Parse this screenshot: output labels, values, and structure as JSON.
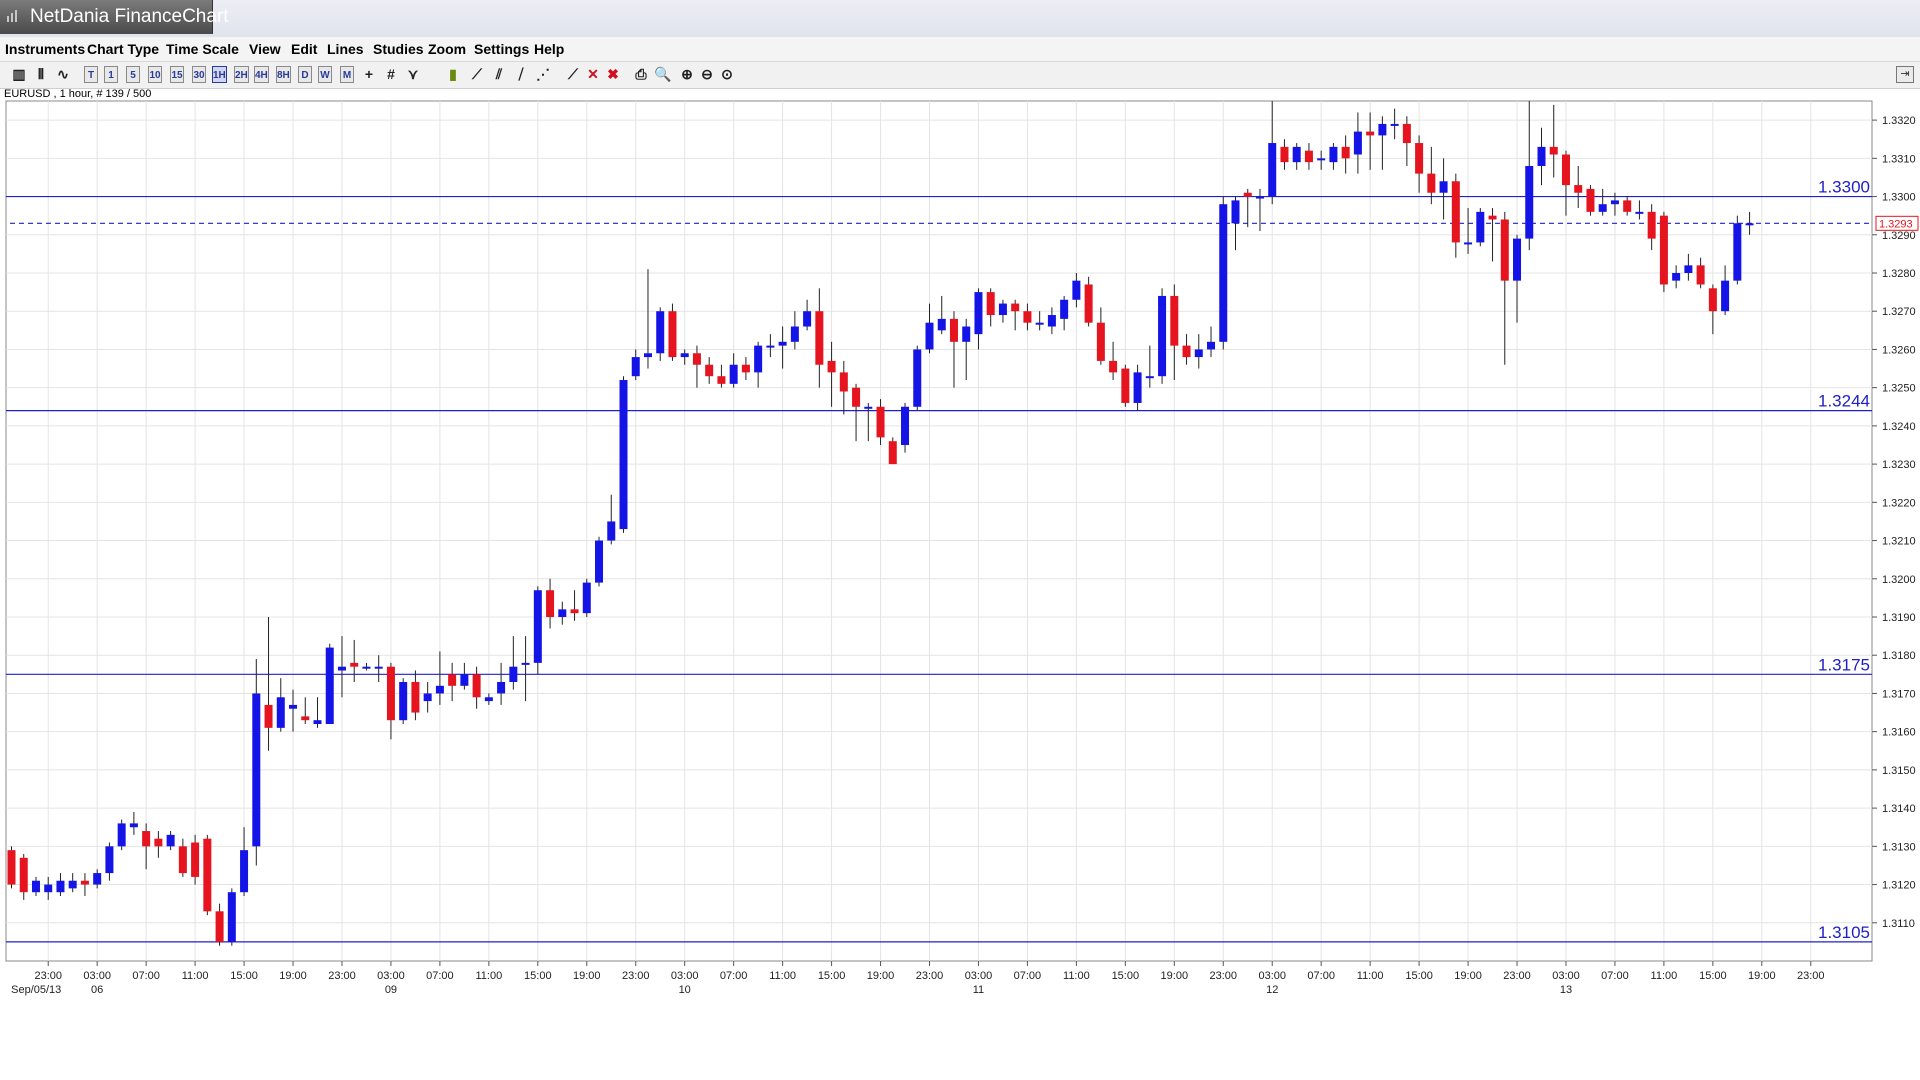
{
  "window": {
    "title": "NetDania FinanceChart"
  },
  "menu": [
    "Instruments",
    "Chart Type",
    "Time Scale",
    "View",
    "Edit",
    "Lines",
    "Studies",
    "Zoom",
    "Settings",
    "Help"
  ],
  "toolbar": {
    "buttons": [
      {
        "name": "chart-type-candle-icon",
        "label": "▥"
      },
      {
        "name": "chart-type-bar-icon",
        "label": "⫴"
      },
      {
        "name": "chart-type-line-icon",
        "label": "∿"
      },
      {
        "name": "timescale-tick-button",
        "label": "T"
      },
      {
        "name": "timescale-1m-button",
        "label": "1"
      },
      {
        "name": "timescale-5m-button",
        "label": "5"
      },
      {
        "name": "timescale-10m-button",
        "label": "10"
      },
      {
        "name": "timescale-15m-button",
        "label": "15"
      },
      {
        "name": "timescale-30m-button",
        "label": "30"
      },
      {
        "name": "timescale-1h-button",
        "label": "1H"
      },
      {
        "name": "timescale-2h-button",
        "label": "2H"
      },
      {
        "name": "timescale-4h-button",
        "label": "4H"
      },
      {
        "name": "timescale-8h-button",
        "label": "8H"
      },
      {
        "name": "timescale-day-button",
        "label": "D"
      },
      {
        "name": "timescale-week-button",
        "label": "W"
      },
      {
        "name": "timescale-month-button",
        "label": "M"
      },
      {
        "name": "crosshair-icon",
        "label": "+"
      },
      {
        "name": "grid-icon",
        "label": "#"
      },
      {
        "name": "indicator-icon",
        "label": "⋎"
      },
      {
        "name": "volume-icon",
        "label": "▮"
      },
      {
        "name": "trend-line-icon",
        "label": "⟋"
      },
      {
        "name": "channel-icon",
        "label": "⫽"
      },
      {
        "name": "fibonacci-icon",
        "label": "⧸"
      },
      {
        "name": "fan-icon",
        "label": "⋰"
      },
      {
        "name": "delete-line-icon",
        "label": "⟋"
      },
      {
        "name": "delete-icon",
        "label": "✕"
      },
      {
        "name": "delete-all-icon",
        "label": "✖"
      },
      {
        "name": "print-icon",
        "label": "⎙"
      },
      {
        "name": "print-preview-icon",
        "label": "🔍"
      },
      {
        "name": "zoom-in-icon",
        "label": "⊕"
      },
      {
        "name": "zoom-out-icon",
        "label": "⊖"
      },
      {
        "name": "zoom-reset-icon",
        "label": "⊙"
      }
    ],
    "active": "1H",
    "collapse_label": "⇥"
  },
  "instrument_info": "EURUSD , 1 hour, # 139 / 500",
  "colors": {
    "up": "#1414e6",
    "down": "#e6141e",
    "hline": "#2020c8",
    "grid": "#e4e4e4",
    "last_price": "#e6141e"
  },
  "chart_data": {
    "type": "candlestick",
    "instrument": "EURUSD",
    "timeframe": "1 hour",
    "ylim": [
      1.31,
      1.3325
    ],
    "y_ticks": [
      "1.3110",
      "1.3120",
      "1.3130",
      "1.3140",
      "1.3150",
      "1.3160",
      "1.3170",
      "1.3180",
      "1.3190",
      "1.3200",
      "1.3210",
      "1.3220",
      "1.3230",
      "1.3240",
      "1.3250",
      "1.3260",
      "1.3270",
      "1.3280",
      "1.3290",
      "1.3300",
      "1.3310",
      "1.3320"
    ],
    "x_ticks": [
      {
        "time": "23:00",
        "date": "Sep/05/13"
      },
      {
        "time": "03:00",
        "date": "06"
      },
      {
        "time": "07:00",
        "date": ""
      },
      {
        "time": "11:00",
        "date": ""
      },
      {
        "time": "15:00",
        "date": ""
      },
      {
        "time": "19:00",
        "date": ""
      },
      {
        "time": "23:00",
        "date": ""
      },
      {
        "time": "03:00",
        "date": "09"
      },
      {
        "time": "07:00",
        "date": ""
      },
      {
        "time": "11:00",
        "date": ""
      },
      {
        "time": "15:00",
        "date": ""
      },
      {
        "time": "19:00",
        "date": ""
      },
      {
        "time": "23:00",
        "date": ""
      },
      {
        "time": "03:00",
        "date": "10"
      },
      {
        "time": "07:00",
        "date": ""
      },
      {
        "time": "11:00",
        "date": ""
      },
      {
        "time": "15:00",
        "date": ""
      },
      {
        "time": "19:00",
        "date": ""
      },
      {
        "time": "23:00",
        "date": ""
      },
      {
        "time": "03:00",
        "date": "11"
      },
      {
        "time": "07:00",
        "date": ""
      },
      {
        "time": "11:00",
        "date": ""
      },
      {
        "time": "15:00",
        "date": ""
      },
      {
        "time": "19:00",
        "date": ""
      },
      {
        "time": "23:00",
        "date": ""
      },
      {
        "time": "03:00",
        "date": "12"
      },
      {
        "time": "07:00",
        "date": ""
      },
      {
        "time": "11:00",
        "date": ""
      },
      {
        "time": "15:00",
        "date": ""
      },
      {
        "time": "19:00",
        "date": ""
      },
      {
        "time": "23:00",
        "date": ""
      },
      {
        "time": "03:00",
        "date": "13"
      },
      {
        "time": "07:00",
        "date": ""
      },
      {
        "time": "11:00",
        "date": ""
      },
      {
        "time": "15:00",
        "date": ""
      },
      {
        "time": "19:00",
        "date": ""
      },
      {
        "time": "23:00",
        "date": ""
      }
    ],
    "horizontal_lines": [
      {
        "value": 1.33,
        "label": "1.3300"
      },
      {
        "value": 1.3244,
        "label": "1.3244"
      },
      {
        "value": 1.3175,
        "label": "1.3175"
      },
      {
        "value": 1.3105,
        "label": "1.3105"
      }
    ],
    "last_price": {
      "value": 1.3293,
      "label": "1.3293"
    },
    "candles": [
      [
        1.3129,
        1.312,
        1.313,
        1.3119
      ],
      [
        1.3127,
        1.3118,
        1.3128,
        1.3116
      ],
      [
        1.3118,
        1.3121,
        1.3122,
        1.3117
      ],
      [
        1.3118,
        1.312,
        1.3122,
        1.3116
      ],
      [
        1.3118,
        1.3121,
        1.3123,
        1.3117
      ],
      [
        1.3119,
        1.3121,
        1.3123,
        1.3118
      ],
      [
        1.3121,
        1.312,
        1.3123,
        1.3117
      ],
      [
        1.312,
        1.3123,
        1.3124,
        1.3119
      ],
      [
        1.3123,
        1.313,
        1.3131,
        1.3121
      ],
      [
        1.313,
        1.3136,
        1.3137,
        1.3129
      ],
      [
        1.3135,
        1.3136,
        1.3139,
        1.3133
      ],
      [
        1.3134,
        1.313,
        1.3136,
        1.3124
      ],
      [
        1.3132,
        1.313,
        1.3134,
        1.3127
      ],
      [
        1.313,
        1.3133,
        1.3134,
        1.3129
      ],
      [
        1.313,
        1.3123,
        1.3132,
        1.3122
      ],
      [
        1.3131,
        1.3122,
        1.3133,
        1.312
      ],
      [
        1.3132,
        1.3113,
        1.3133,
        1.3112
      ],
      [
        1.3113,
        1.3105,
        1.3115,
        1.3104
      ],
      [
        1.3105,
        1.3118,
        1.3119,
        1.3104
      ],
      [
        1.3118,
        1.3129,
        1.3135,
        1.3117
      ],
      [
        1.313,
        1.317,
        1.3179,
        1.3125
      ],
      [
        1.3167,
        1.3161,
        1.319,
        1.3155
      ],
      [
        1.3161,
        1.3169,
        1.3174,
        1.316
      ],
      [
        1.3166,
        1.3167,
        1.3171,
        1.316
      ],
      [
        1.3164,
        1.3163,
        1.3169,
        1.3162
      ],
      [
        1.3162,
        1.3163,
        1.3169,
        1.3161
      ],
      [
        1.3162,
        1.3182,
        1.3183,
        1.3162
      ],
      [
        1.3176,
        1.3177,
        1.3185,
        1.3169
      ],
      [
        1.3178,
        1.3177,
        1.3184,
        1.3173
      ],
      [
        1.3177,
        1.3177,
        1.3178,
        1.3176
      ],
      [
        1.3177,
        1.3177,
        1.318,
        1.3173
      ],
      [
        1.3177,
        1.3163,
        1.3178,
        1.3158
      ],
      [
        1.3163,
        1.3173,
        1.3174,
        1.3162
      ],
      [
        1.3173,
        1.3165,
        1.3176,
        1.3163
      ],
      [
        1.3168,
        1.317,
        1.3173,
        1.3165
      ],
      [
        1.317,
        1.3172,
        1.3181,
        1.3167
      ],
      [
        1.3175,
        1.3172,
        1.3178,
        1.3168
      ],
      [
        1.3172,
        1.3175,
        1.3178,
        1.3171
      ],
      [
        1.3175,
        1.3169,
        1.3177,
        1.3166
      ],
      [
        1.3168,
        1.3169,
        1.317,
        1.3167
      ],
      [
        1.317,
        1.3173,
        1.3178,
        1.3167
      ],
      [
        1.3173,
        1.3177,
        1.3185,
        1.3171
      ],
      [
        1.3178,
        1.3178,
        1.3185,
        1.3168
      ],
      [
        1.3178,
        1.3197,
        1.3198,
        1.3175
      ],
      [
        1.3197,
        1.319,
        1.32,
        1.3187
      ],
      [
        1.319,
        1.3192,
        1.3194,
        1.3188
      ],
      [
        1.3192,
        1.3191,
        1.3197,
        1.3189
      ],
      [
        1.3191,
        1.3199,
        1.32,
        1.319
      ],
      [
        1.3199,
        1.321,
        1.3211,
        1.3198
      ],
      [
        1.321,
        1.3215,
        1.3222,
        1.3209
      ],
      [
        1.3213,
        1.3252,
        1.3253,
        1.3212
      ],
      [
        1.3253,
        1.3258,
        1.326,
        1.3252
      ],
      [
        1.3258,
        1.3259,
        1.3281,
        1.3255
      ],
      [
        1.3259,
        1.327,
        1.3271,
        1.3257
      ],
      [
        1.327,
        1.3258,
        1.3272,
        1.3257
      ],
      [
        1.3258,
        1.3259,
        1.326,
        1.3256
      ],
      [
        1.3259,
        1.3256,
        1.3261,
        1.325
      ],
      [
        1.3256,
        1.3253,
        1.3258,
        1.3251
      ],
      [
        1.3253,
        1.3251,
        1.3256,
        1.325
      ],
      [
        1.3251,
        1.3256,
        1.3259,
        1.325
      ],
      [
        1.3256,
        1.3254,
        1.3258,
        1.3252
      ],
      [
        1.3254,
        1.3261,
        1.3262,
        1.325
      ],
      [
        1.3261,
        1.3261,
        1.3264,
        1.3258
      ],
      [
        1.3261,
        1.3262,
        1.3266,
        1.3255
      ],
      [
        1.3262,
        1.3266,
        1.327,
        1.326
      ],
      [
        1.3266,
        1.327,
        1.3273,
        1.3265
      ],
      [
        1.327,
        1.3256,
        1.3276,
        1.325
      ],
      [
        1.3257,
        1.3254,
        1.3262,
        1.3245
      ],
      [
        1.3254,
        1.3249,
        1.3257,
        1.3243
      ],
      [
        1.325,
        1.3245,
        1.3251,
        1.3236
      ],
      [
        1.3245,
        1.3245,
        1.3246,
        1.3236
      ],
      [
        1.3245,
        1.3237,
        1.3247,
        1.3235
      ],
      [
        1.3236,
        1.323,
        1.3237,
        1.323
      ],
      [
        1.3235,
        1.3245,
        1.3246,
        1.3233
      ],
      [
        1.3245,
        1.326,
        1.3261,
        1.3244
      ],
      [
        1.326,
        1.3267,
        1.3272,
        1.3259
      ],
      [
        1.3265,
        1.3268,
        1.3274,
        1.3264
      ],
      [
        1.3268,
        1.3262,
        1.327,
        1.325
      ],
      [
        1.3262,
        1.3266,
        1.3268,
        1.3252
      ],
      [
        1.3264,
        1.3275,
        1.3276,
        1.326
      ],
      [
        1.3275,
        1.3269,
        1.3276,
        1.3266
      ],
      [
        1.3269,
        1.3272,
        1.3273,
        1.3267
      ],
      [
        1.3272,
        1.327,
        1.3273,
        1.3265
      ],
      [
        1.327,
        1.3267,
        1.3272,
        1.3265
      ],
      [
        1.3267,
        1.3267,
        1.327,
        1.3265
      ],
      [
        1.3266,
        1.3269,
        1.3271,
        1.3264
      ],
      [
        1.3268,
        1.3273,
        1.3274,
        1.3265
      ],
      [
        1.3273,
        1.3278,
        1.328,
        1.3271
      ],
      [
        1.3277,
        1.3267,
        1.3279,
        1.3266
      ],
      [
        1.3267,
        1.3257,
        1.3271,
        1.3256
      ],
      [
        1.3257,
        1.3254,
        1.3262,
        1.3252
      ],
      [
        1.3255,
        1.3246,
        1.3256,
        1.3245
      ],
      [
        1.3246,
        1.3254,
        1.3256,
        1.3244
      ],
      [
        1.3253,
        1.3253,
        1.3261,
        1.325
      ],
      [
        1.3253,
        1.3274,
        1.3276,
        1.3251
      ],
      [
        1.3274,
        1.3261,
        1.3277,
        1.3252
      ],
      [
        1.3261,
        1.3258,
        1.3264,
        1.3256
      ],
      [
        1.3258,
        1.326,
        1.3264,
        1.3255
      ],
      [
        1.326,
        1.3262,
        1.3266,
        1.3258
      ],
      [
        1.3262,
        1.3298,
        1.33,
        1.326
      ],
      [
        1.3293,
        1.3299,
        1.33,
        1.3286
      ],
      [
        1.3301,
        1.33,
        1.3302,
        1.3292
      ],
      [
        1.33,
        1.33,
        1.3302,
        1.3291
      ],
      [
        1.33,
        1.3314,
        1.3325,
        1.3298
      ],
      [
        1.3313,
        1.3309,
        1.3315,
        1.3307
      ],
      [
        1.3309,
        1.3313,
        1.3314,
        1.3307
      ],
      [
        1.3312,
        1.3309,
        1.3314,
        1.3307
      ],
      [
        1.331,
        1.331,
        1.3312,
        1.3307
      ],
      [
        1.3309,
        1.3313,
        1.3314,
        1.3307
      ],
      [
        1.3313,
        1.331,
        1.3316,
        1.3306
      ],
      [
        1.3311,
        1.3317,
        1.3322,
        1.3306
      ],
      [
        1.3317,
        1.3316,
        1.3322,
        1.3307
      ],
      [
        1.3316,
        1.3319,
        1.3321,
        1.3307
      ],
      [
        1.3319,
        1.3319,
        1.3323,
        1.3315
      ],
      [
        1.3319,
        1.3314,
        1.3321,
        1.3308
      ],
      [
        1.3314,
        1.3306,
        1.3316,
        1.3301
      ],
      [
        1.3306,
        1.3301,
        1.3313,
        1.3298
      ],
      [
        1.3301,
        1.3304,
        1.331,
        1.3294
      ],
      [
        1.3304,
        1.3288,
        1.3306,
        1.3284
      ],
      [
        1.3288,
        1.3288,
        1.3297,
        1.3285
      ],
      [
        1.3288,
        1.3296,
        1.3297,
        1.3287
      ],
      [
        1.3295,
        1.3294,
        1.3297,
        1.3283
      ],
      [
        1.3294,
        1.3278,
        1.3296,
        1.3256
      ],
      [
        1.3278,
        1.3289,
        1.329,
        1.3267
      ],
      [
        1.3289,
        1.3308,
        1.3325,
        1.3286
      ],
      [
        1.3308,
        1.3313,
        1.3318,
        1.3303
      ],
      [
        1.3313,
        1.3311,
        1.3324,
        1.3305
      ],
      [
        1.3311,
        1.3303,
        1.3312,
        1.3295
      ],
      [
        1.3303,
        1.3301,
        1.3308,
        1.3297
      ],
      [
        1.3302,
        1.3296,
        1.3303,
        1.3295
      ],
      [
        1.3296,
        1.3298,
        1.3302,
        1.3295
      ],
      [
        1.3298,
        1.3299,
        1.3301,
        1.3295
      ],
      [
        1.3299,
        1.3296,
        1.33,
        1.3295
      ],
      [
        1.3296,
        1.3296,
        1.3299,
        1.3294
      ],
      [
        1.3296,
        1.3289,
        1.3298,
        1.3286
      ],
      [
        1.3295,
        1.3277,
        1.3296,
        1.3275
      ],
      [
        1.3278,
        1.328,
        1.3282,
        1.3276
      ],
      [
        1.328,
        1.3282,
        1.3285,
        1.3278
      ],
      [
        1.3282,
        1.3277,
        1.3284,
        1.3276
      ],
      [
        1.3276,
        1.327,
        1.3277,
        1.3264
      ],
      [
        1.327,
        1.3278,
        1.3282,
        1.3269
      ],
      [
        1.3278,
        1.3293,
        1.3295,
        1.3277
      ],
      [
        1.3293,
        1.3293,
        1.3296,
        1.329
      ]
    ]
  }
}
